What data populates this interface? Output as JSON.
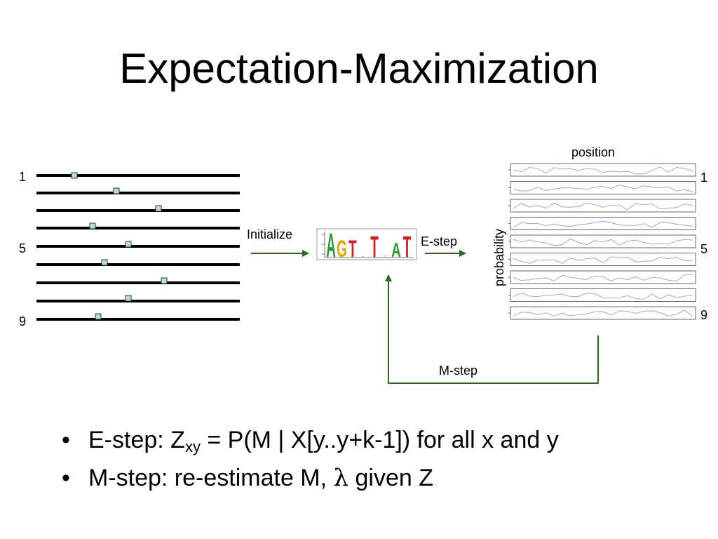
{
  "title": "Expectation-Maximization",
  "diagram": {
    "sequence_labels": [
      "1",
      "5",
      "9"
    ],
    "initialize_label": "Initialize",
    "estep_label": "E-step",
    "mstep_label": "M-step",
    "position_label": "position",
    "probability_label": "probability",
    "motif_logo_letters": [
      "A",
      "G",
      "T",
      ".",
      "T",
      ".",
      "A",
      "T"
    ],
    "logo_colors": {
      "A": "#2e9e2e",
      "G": "#e8a500",
      "T": "#d61c1c",
      "C": "#1c3fd6"
    },
    "line_color": "#000000",
    "marker_color": "#b5dde6",
    "arrow_color": "#2a6b1f",
    "probability_line_color": "#9aa6e8",
    "panel_count": 9
  },
  "bullets": [
    {
      "pre": "E-step: Z",
      "sub": "xy",
      "post": " = P(M | X[y..y+k-1]) for all x and y"
    },
    {
      "pre": "M-step: re-estimate M, ",
      "symbol": "λ",
      "post": " given Z"
    }
  ]
}
